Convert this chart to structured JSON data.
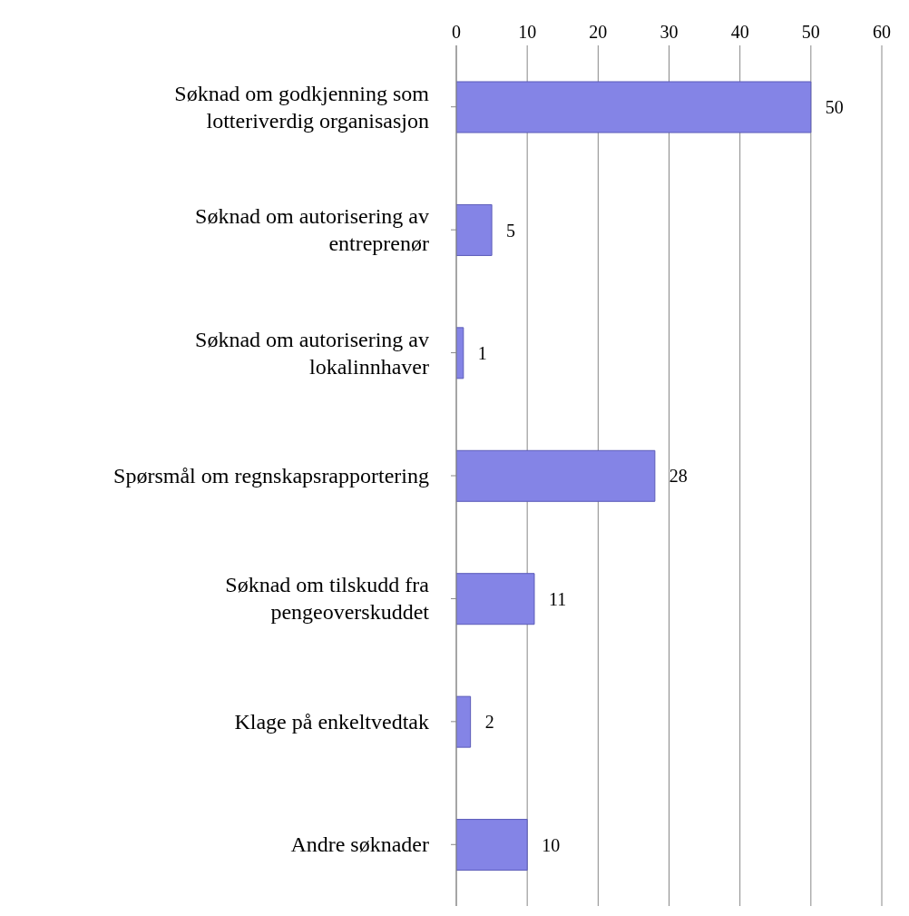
{
  "chart_data": {
    "type": "bar",
    "orientation": "horizontal",
    "categories": [
      "Søknad om godkjenning som lotteriverdig organisasjon",
      "Søknad om autorisering av entreprenør",
      "Søknad om autorisering av lokalinnhaver",
      "Spørsmål om regnskapsrapportering",
      "Søknad om tilskudd fra pengeoverskuddet",
      "Klage på enkeltvedtak",
      "Andre søknader"
    ],
    "values": [
      50,
      5,
      1,
      28,
      11,
      2,
      10
    ],
    "color": "#8484e6",
    "xlim": [
      0,
      60
    ],
    "xticks": [
      0,
      10,
      20,
      30,
      40,
      50,
      60
    ],
    "grid": "x",
    "data_labels": true
  }
}
